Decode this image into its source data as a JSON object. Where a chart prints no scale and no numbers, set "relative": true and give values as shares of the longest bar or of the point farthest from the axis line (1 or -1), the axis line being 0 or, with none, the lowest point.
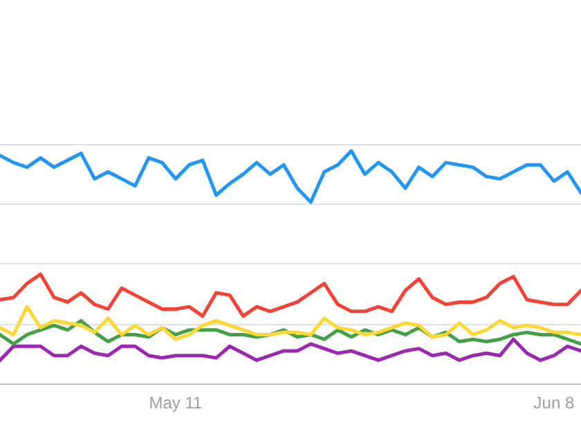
{
  "chart_data": {
    "type": "line",
    "relative": true,
    "grid": "y",
    "x": [
      "--04-28",
      "--04-29",
      "--04-30",
      "--05-01",
      "--05-02",
      "--05-03",
      "--05-04",
      "--05-05",
      "--05-06",
      "--05-07",
      "--05-08",
      "--05-09",
      "--05-10",
      "--05-11",
      "--05-12",
      "--05-13",
      "--05-14",
      "--05-15",
      "--05-16",
      "--05-17",
      "--05-18",
      "--05-19",
      "--05-20",
      "--05-21",
      "--05-22",
      "--05-23",
      "--05-24",
      "--05-25",
      "--05-26",
      "--05-27",
      "--05-28",
      "--05-29",
      "--05-30",
      "--05-31",
      "--06-01",
      "--06-02",
      "--06-03",
      "--06-04",
      "--06-05",
      "--06-06",
      "--06-07",
      "--06-08",
      "--06-09",
      "--06-10"
    ],
    "xlim": [
      "--04-28",
      "--06-10"
    ],
    "xticks": [
      {
        "value": "--05-11",
        "label": "May 11"
      },
      {
        "value": "--06-08",
        "label": "Jun 8"
      }
    ],
    "series": [
      {
        "color": "#2196f3",
        "values": [
          0.98,
          0.95,
          0.93,
          0.97,
          0.93,
          0.96,
          0.99,
          0.88,
          0.91,
          0.88,
          0.85,
          0.97,
          0.95,
          0.88,
          0.94,
          0.96,
          0.81,
          0.86,
          0.9,
          0.95,
          0.9,
          0.94,
          0.84,
          0.78,
          0.91,
          0.94,
          1,
          0.9,
          0.95,
          0.91,
          0.84,
          0.93,
          0.89,
          0.95,
          0.94,
          0.93,
          0.89,
          0.88,
          0.91,
          0.94,
          0.94,
          0.87,
          0.91,
          0.82
        ]
      },
      {
        "color": "#f44336",
        "values": [
          0.36,
          0.37,
          0.43,
          0.47,
          0.37,
          0.35,
          0.39,
          0.34,
          0.32,
          0.41,
          0.38,
          0.35,
          0.32,
          0.32,
          0.33,
          0.29,
          0.39,
          0.38,
          0.29,
          0.33,
          0.31,
          0.33,
          0.35,
          0.39,
          0.43,
          0.34,
          0.31,
          0.31,
          0.33,
          0.31,
          0.4,
          0.45,
          0.37,
          0.34,
          0.35,
          0.35,
          0.37,
          0.43,
          0.46,
          0.36,
          0.35,
          0.34,
          0.34,
          0.4
        ]
      },
      {
        "color": "#fdd835",
        "values": [
          0.24,
          0.21,
          0.33,
          0.24,
          0.27,
          0.26,
          0.25,
          0.22,
          0.28,
          0.21,
          0.25,
          0.21,
          0.24,
          0.19,
          0.21,
          0.25,
          0.27,
          0.25,
          0.23,
          0.21,
          0.21,
          0.22,
          0.22,
          0.21,
          0.28,
          0.24,
          0.23,
          0.21,
          0.22,
          0.24,
          0.26,
          0.25,
          0.2,
          0.21,
          0.26,
          0.21,
          0.23,
          0.27,
          0.24,
          0.25,
          0.24,
          0.22,
          0.22,
          0.21
        ]
      },
      {
        "color": "#43a047",
        "values": [
          0.21,
          0.17,
          0.21,
          0.23,
          0.25,
          0.23,
          0.27,
          0.22,
          0.18,
          0.21,
          0.21,
          0.2,
          0.24,
          0.21,
          0.23,
          0.23,
          0.23,
          0.21,
          0.21,
          0.2,
          0.21,
          0.23,
          0.2,
          0.21,
          0.19,
          0.23,
          0.2,
          0.23,
          0.21,
          0.23,
          0.21,
          0.24,
          0.2,
          0.22,
          0.18,
          0.19,
          0.18,
          0.19,
          0.21,
          0.22,
          0.21,
          0.21,
          0.19,
          0.17
        ]
      },
      {
        "color": "#9c27b0",
        "values": [
          0.1,
          0.16,
          0.16,
          0.16,
          0.12,
          0.12,
          0.16,
          0.13,
          0.12,
          0.16,
          0.16,
          0.12,
          0.11,
          0.12,
          0.12,
          0.12,
          0.11,
          0.16,
          0.13,
          0.1,
          0.12,
          0.14,
          0.14,
          0.17,
          0.15,
          0.13,
          0.14,
          0.12,
          0.1,
          0.12,
          0.14,
          0.15,
          0.12,
          0.13,
          0.1,
          0.12,
          0.13,
          0.12,
          0.19,
          0.13,
          0.1,
          0.12,
          0.16,
          0.14
        ]
      }
    ]
  }
}
